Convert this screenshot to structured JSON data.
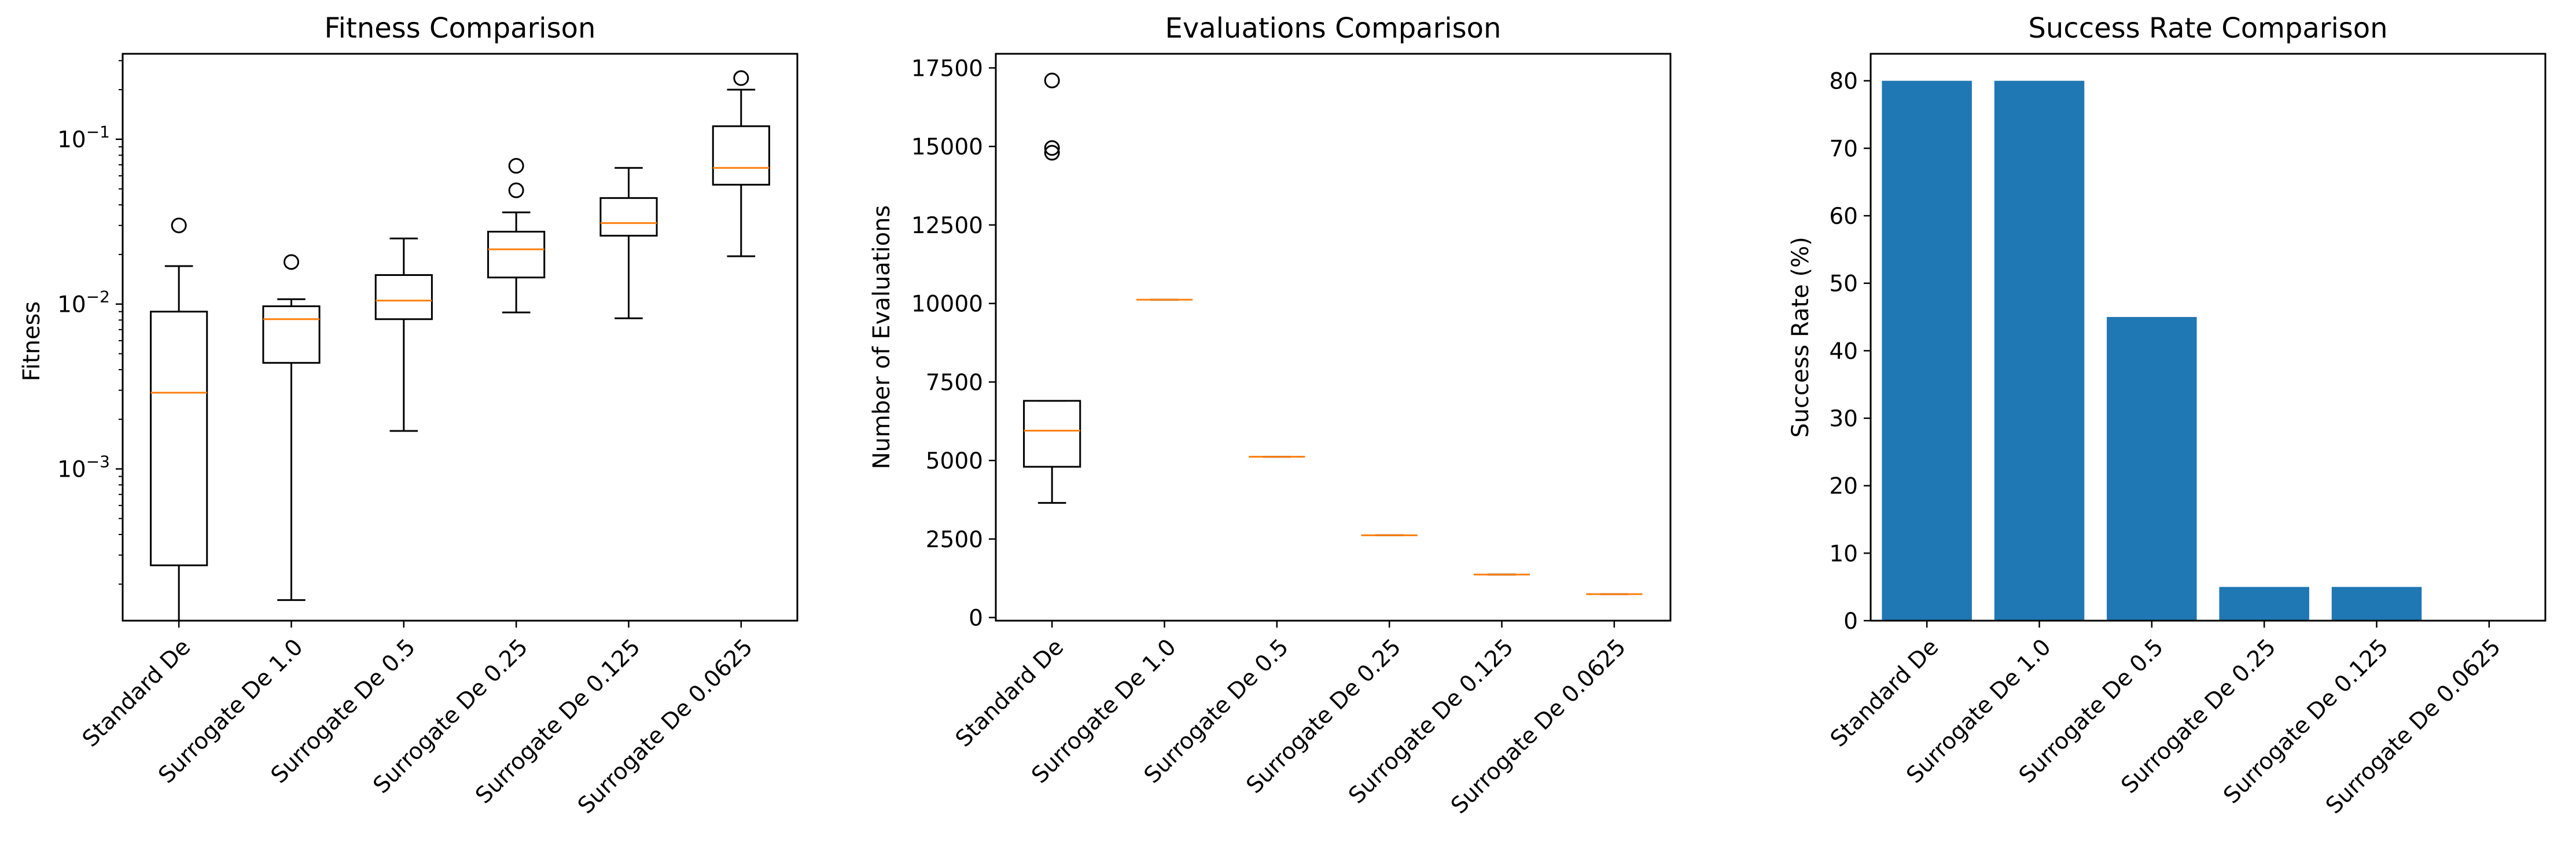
{
  "chart_data": [
    {
      "type": "box",
      "title": "Fitness Comparison",
      "xlabel": "",
      "ylabel": "Fitness",
      "yscale": "log",
      "ylim": [
        0.00012,
        0.33
      ],
      "yticks": [
        {
          "value": 0.001,
          "base": "10",
          "exp": "−3"
        },
        {
          "value": 0.01,
          "base": "10",
          "exp": "−2"
        },
        {
          "value": 0.1,
          "base": "10",
          "exp": "−1"
        }
      ],
      "grid": false,
      "categories": [
        "Standard De",
        "Surrogate De 1.0",
        "Surrogate De 0.5",
        "Surrogate De 0.25",
        "Surrogate De 0.125",
        "Surrogate De 0.0625"
      ],
      "boxes": [
        {
          "whisker_low": 0.00012,
          "q1": 0.00026,
          "median": 0.0029,
          "q3": 0.009,
          "whisker_high": 0.017,
          "outliers": [
            0.03
          ]
        },
        {
          "whisker_low": 0.00016,
          "q1": 0.0044,
          "median": 0.0081,
          "q3": 0.0097,
          "whisker_high": 0.0107,
          "outliers": [
            0.018
          ]
        },
        {
          "whisker_low": 0.0017,
          "q1": 0.0081,
          "median": 0.0105,
          "q3": 0.015,
          "whisker_high": 0.025,
          "outliers": []
        },
        {
          "whisker_low": 0.0089,
          "q1": 0.0145,
          "median": 0.0215,
          "q3": 0.0275,
          "whisker_high": 0.036,
          "outliers": [
            0.049,
            0.069
          ]
        },
        {
          "whisker_low": 0.0082,
          "q1": 0.026,
          "median": 0.031,
          "q3": 0.044,
          "whisker_high": 0.067,
          "outliers": []
        },
        {
          "whisker_low": 0.0195,
          "q1": 0.053,
          "median": 0.067,
          "q3": 0.12,
          "whisker_high": 0.2,
          "outliers": [
            0.235
          ]
        }
      ]
    },
    {
      "type": "box",
      "title": "Evaluations Comparison",
      "xlabel": "",
      "ylabel": "Number of Evaluations",
      "yscale": "linear",
      "ylim": [
        -100,
        17950
      ],
      "yticks": [
        0,
        2500,
        5000,
        7500,
        10000,
        12500,
        15000,
        17500
      ],
      "ytick_labels": [
        "0",
        "2500",
        "5000",
        "7500",
        "10000",
        "12500",
        "15000",
        "17500"
      ],
      "grid": false,
      "categories": [
        "Standard De",
        "Surrogate De 1.0",
        "Surrogate De 0.5",
        "Surrogate De 0.25",
        "Surrogate De 0.125",
        "Surrogate De 0.0625"
      ],
      "boxes": [
        {
          "whisker_low": 3650,
          "q1": 4800,
          "median": 5950,
          "q3": 6900,
          "whisker_high": 6900,
          "outliers": [
            14800,
            14950,
            17100
          ]
        },
        {
          "whisker_low": 10120,
          "q1": 10120,
          "median": 10120,
          "q3": 10120,
          "whisker_high": 10120,
          "outliers": []
        },
        {
          "whisker_low": 5120,
          "q1": 5120,
          "median": 5120,
          "q3": 5120,
          "whisker_high": 5120,
          "outliers": []
        },
        {
          "whisker_low": 2620,
          "q1": 2620,
          "median": 2620,
          "q3": 2620,
          "whisker_high": 2620,
          "outliers": []
        },
        {
          "whisker_low": 1370,
          "q1": 1370,
          "median": 1370,
          "q3": 1370,
          "whisker_high": 1370,
          "outliers": []
        },
        {
          "whisker_low": 745,
          "q1": 745,
          "median": 745,
          "q3": 745,
          "whisker_high": 745,
          "outliers": []
        }
      ]
    },
    {
      "type": "bar",
      "title": "Success Rate Comparison",
      "xlabel": "",
      "ylabel": "Success Rate (%)",
      "yscale": "linear",
      "ylim": [
        0,
        84
      ],
      "yticks": [
        0,
        10,
        20,
        30,
        40,
        50,
        60,
        70,
        80
      ],
      "ytick_labels": [
        "0",
        "10",
        "20",
        "30",
        "40",
        "50",
        "60",
        "70",
        "80"
      ],
      "grid": false,
      "categories": [
        "Standard De",
        "Surrogate De 1.0",
        "Surrogate De 0.5",
        "Surrogate De 0.25",
        "Surrogate De 0.125",
        "Surrogate De 0.0625"
      ],
      "values": [
        80,
        80,
        45,
        5,
        5,
        0
      ]
    }
  ],
  "colors": {
    "bar": "#1f77b4",
    "median": "#ff7f0e",
    "box": "#000000"
  }
}
